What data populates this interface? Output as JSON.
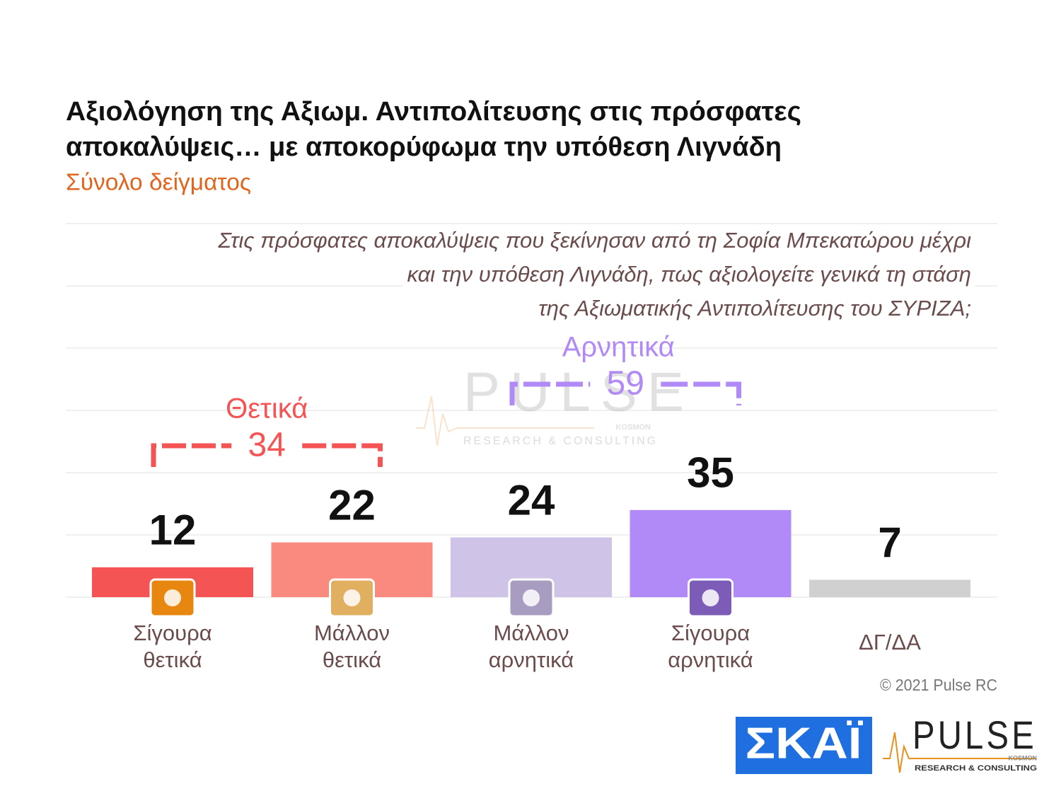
{
  "chart_data": {
    "type": "bar",
    "title": [
      "Αξιολόγηση της Αξιωμ. Αντιπολίτευσης στις πρόσφατες",
      "αποκαλύψεις… με αποκορύφωμα την υπόθεση Λιγνάδη"
    ],
    "subtitle": "Σύνολο δείγματος",
    "question": [
      "Στις πρόσφατες αποκαλύψεις που ξεκίνησαν από τη Σοφία Μπεκατώρου μέχρι",
      "και την υπόθεση Λιγνάδη, πως αξιολογείτε γενικά τη στάση",
      "της Αξιωματικής Αντιπολίτευσης του ΣΥΡΙΖΑ;"
    ],
    "categories": [
      "Σίγουρα θετικά",
      "Μάλλον θετικά",
      "Μάλλον αρνητικά",
      "Σίγουρα αρνητικά",
      "ΔΓ/ΔΑ"
    ],
    "values": [
      12,
      22,
      24,
      35,
      7
    ],
    "colors": [
      "#f55454",
      "#fa8a80",
      "#cfc4e8",
      "#b18af7",
      "#d0d0d0"
    ],
    "icon_colors": [
      "#e8870f",
      "#e0b060",
      "#a89cc0",
      "#7d5cb8",
      null
    ],
    "groups": [
      {
        "label": "Θετικά",
        "value": 34,
        "color": "#f55454",
        "from": 0,
        "to": 1
      },
      {
        "label": "Αρνητικά",
        "value": 59,
        "color": "#b18af7",
        "from": 2,
        "to": 3
      }
    ],
    "ylim": [
      0,
      150
    ],
    "yticks": [
      0,
      25,
      50,
      75,
      100,
      125,
      150
    ],
    "grid": true,
    "copyright": "© 2021 Pulse RC",
    "logos": {
      "skai": "ΣΚΑΪ",
      "pulse": "PULSE",
      "pulse_sub": "RESEARCH & CONSULTING",
      "pulse_kosmon": "KOSMON"
    }
  }
}
